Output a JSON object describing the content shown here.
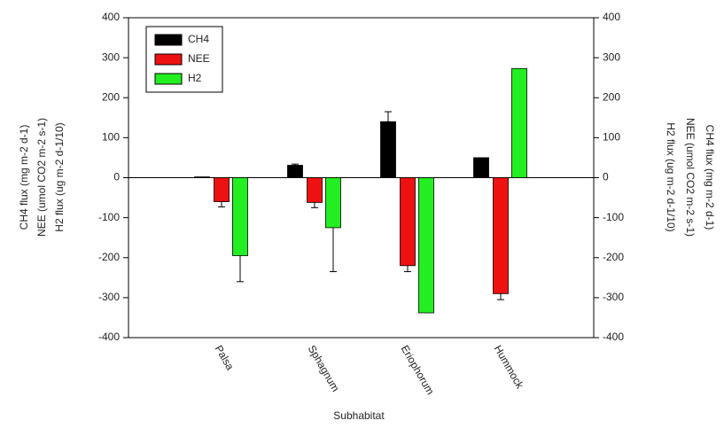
{
  "chart_data": {
    "type": "bar",
    "categories": [
      "Palsa",
      "Sphagnum",
      "Eriophorum",
      "Hummock"
    ],
    "series": [
      {
        "name": "CH4",
        "color": "#000000",
        "values": [
          2,
          31,
          140,
          50
        ],
        "errors": [
          null,
          3,
          25,
          null
        ]
      },
      {
        "name": "NEE",
        "color": "#ee1111",
        "values": [
          -60,
          -62,
          -220,
          -290
        ],
        "errors": [
          13,
          13,
          15,
          15
        ]
      },
      {
        "name": "H2",
        "color": "#22ee22",
        "values": [
          -195,
          -125,
          -338,
          273
        ],
        "errors": [
          65,
          110,
          null,
          null
        ]
      }
    ],
    "ylim": [
      -400,
      400
    ],
    "yticks": [
      -400,
      -300,
      -200,
      -100,
      0,
      100,
      200,
      300,
      400
    ],
    "y2lim": [
      -400,
      400
    ],
    "y2ticks": [
      -400,
      -300,
      -200,
      -100,
      0,
      100,
      200,
      300,
      400
    ],
    "xlabel": "Subhabitat",
    "ylabel": [
      "CH4 flux (mg m-2 d-1)",
      "NEE (umol CO2 m-2 s-1)",
      "H2 flux (ug m-2 d-1/10)"
    ],
    "y2label": [
      "CH4 flux (mg m-2 d-1)",
      "NEE (umol CO2 m-2 s-1)",
      "H2 flux (ug m-2 d-1/10)"
    ],
    "legend": "upper left"
  }
}
